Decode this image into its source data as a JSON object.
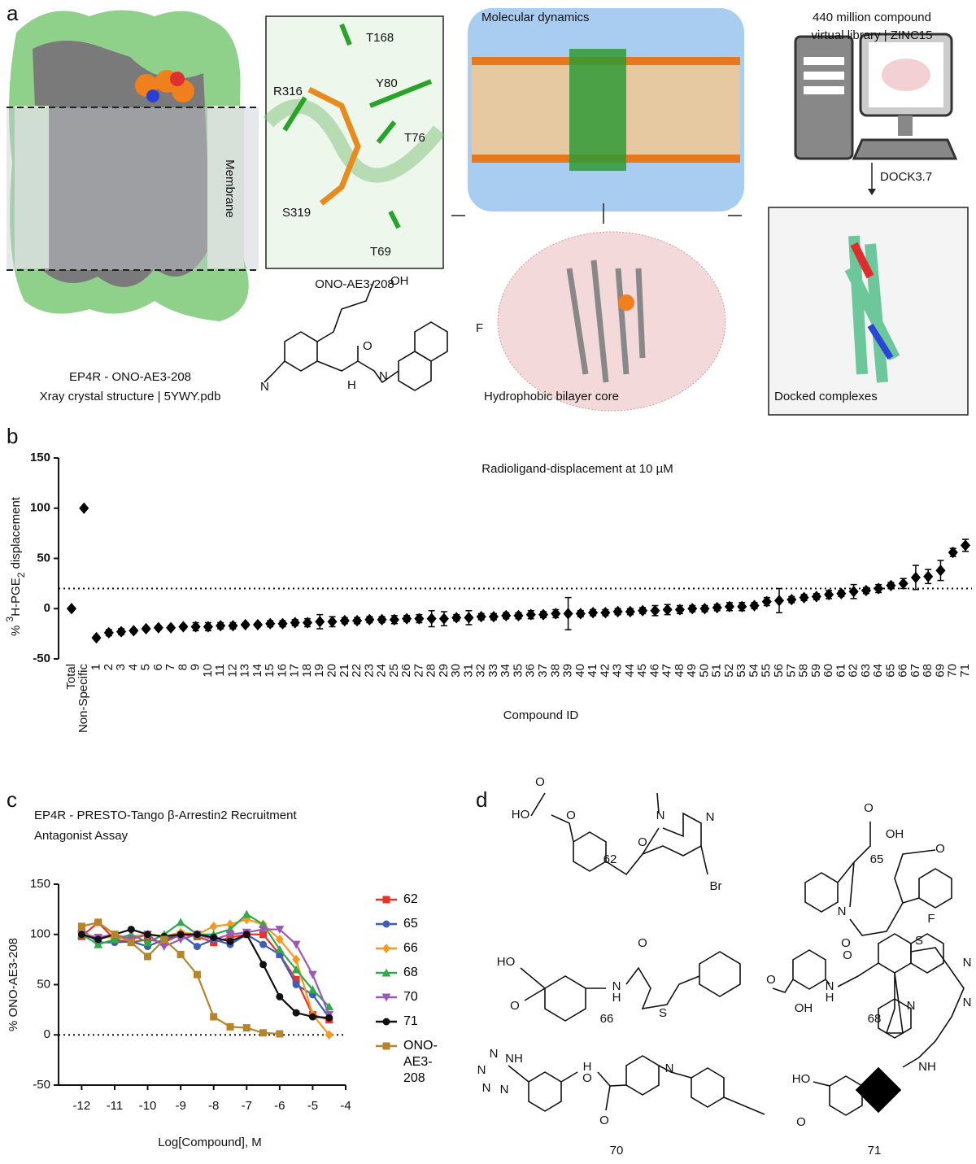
{
  "panel_labels": [
    "a",
    "b",
    "c",
    "d"
  ],
  "panel_a": {
    "membrane": "Membrane",
    "residues": [
      "T168",
      "R316",
      "Y80",
      "T76",
      "S319",
      "T69"
    ],
    "ligand_name": "ONO-AE3-208",
    "atoms": [
      "OH",
      "O",
      "N",
      "H",
      "F",
      "N"
    ],
    "caption": [
      "EP4R - ONO-AE3-208",
      "Xray crystal structure | 5YWY.pdb"
    ],
    "md_title": "Molecular dynamics",
    "library": [
      "440 million compound",
      "virtual library | ZINC15"
    ],
    "dock": "DOCK3.7",
    "bilayer": "Hydrophobic bilayer core",
    "docked": "Docked complexes"
  },
  "chart_data": [
    {
      "type": "dot",
      "title": "Radioligand-displacement at 10 µM",
      "ylabel": {
        "prefix": "% ",
        "sup": "3",
        "main": "H-PGE",
        "sub": "2",
        "suffix": " displacement"
      },
      "xlabel": "Compound ID",
      "categories": [
        "Total",
        "Non-Specific",
        "1",
        "2",
        "3",
        "4",
        "5",
        "6",
        "7",
        "8",
        "9",
        "10",
        "11",
        "12",
        "13",
        "14",
        "15",
        "16",
        "17",
        "18",
        "19",
        "20",
        "21",
        "22",
        "23",
        "24",
        "25",
        "26",
        "27",
        "28",
        "29",
        "30",
        "31",
        "32",
        "33",
        "34",
        "35",
        "36",
        "37",
        "38",
        "39",
        "40",
        "41",
        "42",
        "43",
        "44",
        "45",
        "46",
        "47",
        "48",
        "49",
        "50",
        "51",
        "52",
        "53",
        "54",
        "55",
        "56",
        "57",
        "58",
        "59",
        "60",
        "61",
        "62",
        "63",
        "64",
        "65",
        "66",
        "67",
        "68",
        "69",
        "70",
        "71"
      ],
      "values": [
        0,
        100,
        -29,
        -24,
        -23,
        -22,
        -20,
        -19,
        -19,
        -18,
        -18,
        -18,
        -17,
        -17,
        -16,
        -16,
        -15,
        -15,
        -14,
        -14,
        -13,
        -13,
        -12,
        -12,
        -11,
        -11,
        -11,
        -10,
        -10,
        -10,
        -10,
        -9,
        -9,
        -8,
        -8,
        -7,
        -7,
        -6,
        -6,
        -5,
        -5,
        -5,
        -4,
        -4,
        -3,
        -3,
        -2,
        -2,
        -1,
        -1,
        0,
        0,
        1,
        2,
        2,
        3,
        7,
        8,
        9,
        11,
        12,
        14,
        15,
        17,
        18,
        20,
        23,
        25,
        31,
        32,
        38,
        56,
        63
      ],
      "errors": [
        0,
        0,
        2,
        3,
        3,
        2,
        2,
        2,
        2,
        2,
        4,
        4,
        3,
        3,
        2,
        2,
        3,
        3,
        3,
        4,
        7,
        5,
        3,
        3,
        3,
        3,
        4,
        3,
        4,
        8,
        7,
        3,
        7,
        3,
        3,
        3,
        3,
        4,
        3,
        4,
        16,
        3,
        3,
        3,
        3,
        3,
        3,
        5,
        5,
        4,
        3,
        3,
        3,
        4,
        4,
        3,
        4,
        12,
        3,
        3,
        3,
        4,
        3,
        7,
        3,
        4,
        3,
        5,
        12,
        7,
        10,
        4,
        6
      ],
      "color": "#000000",
      "reference_line": 20,
      "ylim": [
        -50,
        150
      ],
      "yticks": [
        -50,
        0,
        50,
        100,
        150
      ]
    },
    {
      "type": "line",
      "title": [
        "EP4R - PRESTO-Tango  β-Arrestin2 Recruitment",
        "Antagonist Assay"
      ],
      "xlabel": "Log[Compound], M",
      "ylabel": "% ONO-AE3-208",
      "x": [
        -12,
        -11.5,
        -11,
        -10.5,
        -10,
        -9.5,
        -9,
        -8.5,
        -8,
        -7.5,
        -7,
        -6.5,
        -6,
        -5.5,
        -5,
        -4.5
      ],
      "series": [
        {
          "name": "62",
          "color": "#e8322a",
          "marker": "square",
          "values": [
            98,
            112,
            95,
            92,
            95,
            92,
            100,
            98,
            92,
            97,
            100,
            100,
            80,
            55,
            20,
            15
          ]
        },
        {
          "name": "65",
          "color": "#3b5fb6",
          "marker": "circle",
          "values": [
            105,
            92,
            92,
            93,
            88,
            95,
            100,
            88,
            95,
            90,
            100,
            90,
            80,
            50,
            40,
            17
          ]
        },
        {
          "name": "66",
          "color": "#f59a1f",
          "marker": "diamond",
          "values": [
            102,
            96,
            98,
            98,
            100,
            98,
            102,
            100,
            108,
            110,
            115,
            110,
            95,
            75,
            20,
            0
          ]
        },
        {
          "name": "68",
          "color": "#2eaa4a",
          "marker": "triangle",
          "values": [
            100,
            90,
            95,
            100,
            92,
            100,
            112,
            100,
            100,
            105,
            120,
            110,
            85,
            65,
            45,
            28
          ]
        },
        {
          "name": "70",
          "color": "#9a59b5",
          "marker": "triangle-down",
          "values": [
            100,
            97,
            100,
            95,
            100,
            88,
            95,
            100,
            95,
            100,
            102,
            105,
            105,
            90,
            60,
            20
          ]
        },
        {
          "name": "71",
          "color": "#111111",
          "marker": "circle",
          "values": [
            100,
            95,
            100,
            105,
            100,
            98,
            100,
            100,
            97,
            93,
            100,
            70,
            38,
            22,
            18,
            17
          ]
        },
        {
          "name": "ONO-AE3-208",
          "color": "#b5852a",
          "marker": "square",
          "values": [
            108,
            112,
            100,
            92,
            78,
            95,
            80,
            60,
            18,
            8,
            7,
            2,
            1,
            null,
            null,
            null
          ]
        }
      ],
      "reference_line": 0,
      "xlim": [
        -12.7,
        -4
      ],
      "xticks": [
        -12,
        -11,
        -10,
        -9,
        -8,
        -7,
        -6,
        -5,
        -4
      ],
      "ylim": [
        -50,
        150
      ],
      "yticks": [
        -50,
        0,
        50,
        100,
        150
      ]
    }
  ],
  "panel_d": {
    "compounds": [
      {
        "id": "62",
        "atoms": [
          "HO",
          "O",
          "O",
          "N",
          "O",
          "N",
          "Br"
        ]
      },
      {
        "id": "65",
        "atoms": [
          "O",
          "OH",
          "O",
          "N",
          "O"
        ]
      },
      {
        "id": "66",
        "atoms": [
          "HO",
          "O",
          "O",
          "N",
          "H",
          "S"
        ]
      },
      {
        "id": "68",
        "atoms": [
          "F",
          "O",
          "N",
          "H",
          "O",
          "OH",
          "N"
        ]
      },
      {
        "id": "70",
        "atoms": [
          "N",
          "NH",
          "N",
          "N",
          "N",
          "H",
          "O",
          "O",
          "N"
        ]
      },
      {
        "id": "71",
        "atoms": [
          "S",
          "N",
          "N",
          "HO",
          "O",
          "NH"
        ]
      }
    ]
  }
}
